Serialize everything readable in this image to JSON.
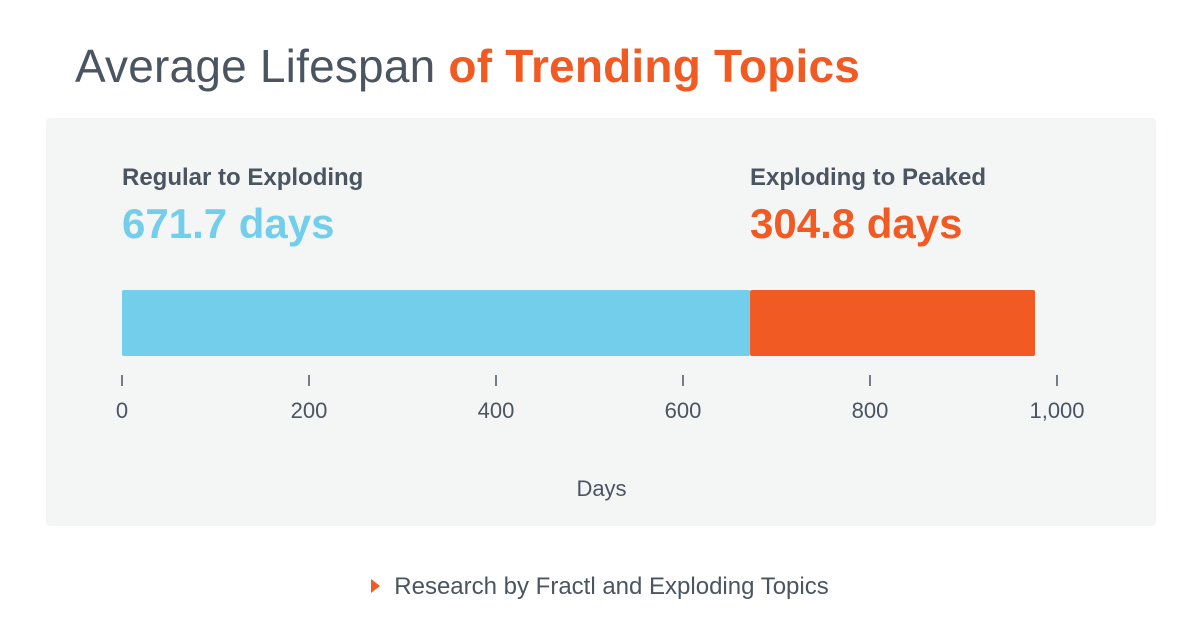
{
  "title": {
    "part1": "Average Lifespan",
    "part2": "of Trending Topics"
  },
  "colors": {
    "title_gray": "#4a5561",
    "accent_orange": "#f15a22",
    "accent_blue": "#72ceea",
    "panel_bg": "#f4f5f5"
  },
  "chart_data": {
    "type": "bar",
    "orientation": "horizontal-stacked",
    "series": [
      {
        "name": "Regular to Exploding",
        "value": 671.7,
        "display": "671.7 days",
        "color": "#72ceea"
      },
      {
        "name": "Exploding to Peaked",
        "value": 304.8,
        "display": "304.8 days",
        "color": "#f15a22"
      }
    ],
    "xlabel": "Days",
    "xlim": [
      0,
      1000
    ],
    "ticks": [
      {
        "value": 0,
        "label": "0"
      },
      {
        "value": 200,
        "label": "200"
      },
      {
        "value": 400,
        "label": "400"
      },
      {
        "value": 600,
        "label": "600"
      },
      {
        "value": 800,
        "label": "800"
      },
      {
        "value": 1000,
        "label": "1,000"
      }
    ],
    "grid": false,
    "legend": "none"
  },
  "source": {
    "text": "Research by Fractl and Exploding Topics",
    "icon": "triangle-right-icon"
  }
}
